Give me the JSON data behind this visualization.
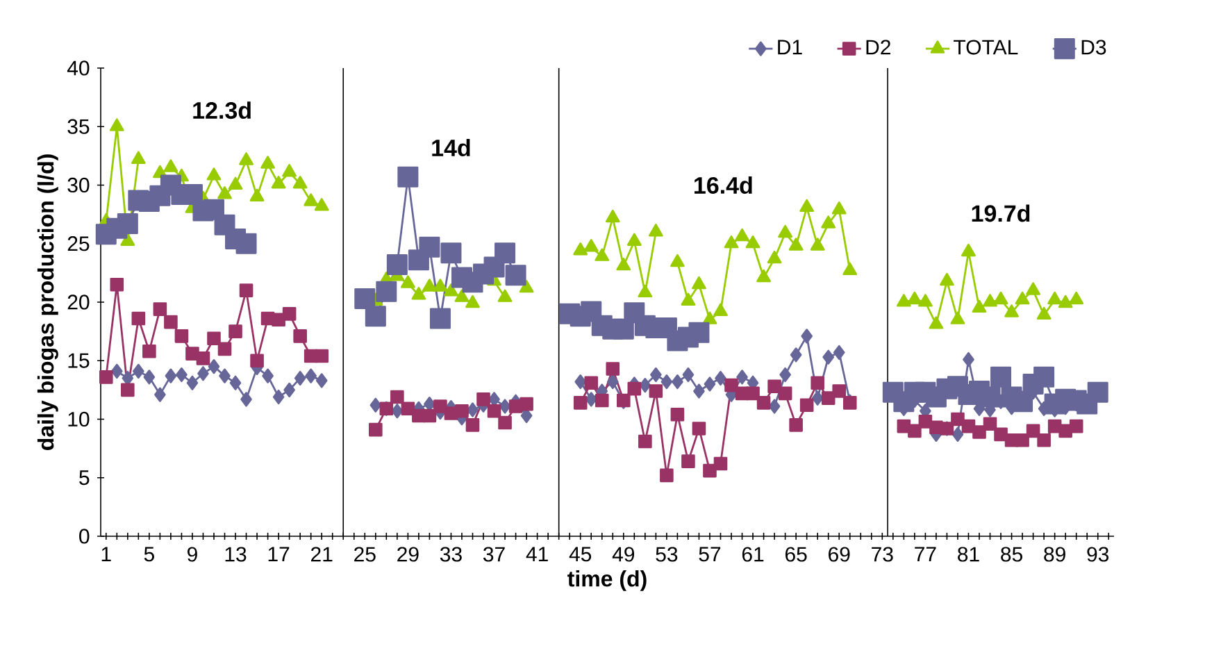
{
  "chart_data": {
    "type": "line",
    "xlabel": "time (d)",
    "ylabel": "daily biogas production (l/d)",
    "xlim": [
      0.5,
      94.5
    ],
    "ylim": [
      0,
      40
    ],
    "xticks": [
      1,
      {
        "value": 2,
        "label": null
      },
      {
        "value": 3,
        "label": null
      },
      {
        "value": 4,
        "label": null
      },
      5,
      {
        "value": 6,
        "label": null
      },
      {
        "value": 7,
        "label": null
      },
      {
        "value": 8,
        "label": null
      },
      9,
      {
        "value": 10,
        "label": null
      },
      {
        "value": 11,
        "label": null
      },
      {
        "value": 12,
        "label": null
      },
      13,
      {
        "value": 14,
        "label": null
      },
      {
        "value": 15,
        "label": null
      },
      {
        "value": 16,
        "label": null
      },
      17,
      {
        "value": 18,
        "label": null
      },
      {
        "value": 19,
        "label": null
      },
      {
        "value": 20,
        "label": null
      },
      21,
      {
        "value": 22,
        "label": null
      },
      {
        "value": 23,
        "label": null
      },
      {
        "value": 24,
        "label": null
      },
      25,
      {
        "value": 26,
        "label": null
      },
      {
        "value": 27,
        "label": null
      },
      {
        "value": 28,
        "label": null
      },
      29,
      {
        "value": 30,
        "label": null
      },
      {
        "value": 31,
        "label": null
      },
      {
        "value": 32,
        "label": null
      },
      33,
      {
        "value": 34,
        "label": null
      },
      {
        "value": 35,
        "label": null
      },
      {
        "value": 36,
        "label": null
      },
      37,
      {
        "value": 38,
        "label": null
      },
      {
        "value": 39,
        "label": null
      },
      {
        "value": 40,
        "label": null
      },
      41,
      {
        "value": 42,
        "label": null
      },
      {
        "value": 43,
        "label": null
      },
      {
        "value": 44,
        "label": null
      },
      45,
      {
        "value": 46,
        "label": null
      },
      {
        "value": 47,
        "label": null
      },
      {
        "value": 48,
        "label": null
      },
      49,
      {
        "value": 50,
        "label": null
      },
      {
        "value": 51,
        "label": null
      },
      {
        "value": 52,
        "label": null
      },
      53,
      {
        "value": 54,
        "label": null
      },
      {
        "value": 55,
        "label": null
      },
      {
        "value": 56,
        "label": null
      },
      57,
      {
        "value": 58,
        "label": null
      },
      {
        "value": 59,
        "label": null
      },
      {
        "value": 60,
        "label": null
      },
      61,
      {
        "value": 62,
        "label": null
      },
      {
        "value": 63,
        "label": null
      },
      {
        "value": 64,
        "label": null
      },
      65,
      {
        "value": 66,
        "label": null
      },
      {
        "value": 67,
        "label": null
      },
      {
        "value": 68,
        "label": null
      },
      69,
      {
        "value": 70,
        "label": null
      },
      {
        "value": 71,
        "label": null
      },
      {
        "value": 72,
        "label": null
      },
      73,
      {
        "value": 74,
        "label": null
      },
      {
        "value": 75,
        "label": null
      },
      {
        "value": 76,
        "label": null
      },
      77,
      {
        "value": 78,
        "label": null
      },
      {
        "value": 79,
        "label": null
      },
      {
        "value": 80,
        "label": null
      },
      81,
      {
        "value": 82,
        "label": null
      },
      {
        "value": 83,
        "label": null
      },
      {
        "value": 84,
        "label": null
      },
      85,
      {
        "value": 86,
        "label": null
      },
      {
        "value": 87,
        "label": null
      },
      {
        "value": 88,
        "label": null
      },
      89,
      {
        "value": 90,
        "label": null
      },
      {
        "value": 91,
        "label": null
      },
      {
        "value": 92,
        "label": null
      },
      93,
      {
        "value": 94,
        "label": null
      }
    ],
    "yticks": [
      0,
      5,
      10,
      15,
      20,
      25,
      30,
      35,
      40
    ],
    "grid": false,
    "legend": "top right",
    "line_style": "solid",
    "series": [
      {
        "name": "D1",
        "color": "#666699",
        "marker": "diamond",
        "x": [
          2,
          3,
          4,
          5,
          6,
          7,
          8,
          9,
          10,
          11,
          12,
          13,
          14,
          15,
          16,
          17,
          18,
          19,
          20,
          21,
          23,
          26,
          27,
          28,
          29,
          30,
          31,
          32,
          33,
          34,
          35,
          36,
          37,
          38,
          39,
          40,
          43,
          45,
          46,
          47,
          48,
          49,
          50,
          51,
          52,
          53,
          54,
          55,
          56,
          57,
          58,
          59,
          60,
          61,
          62,
          63,
          64,
          65,
          66,
          67,
          68,
          69,
          70,
          73,
          75,
          76,
          77,
          78,
          79,
          80,
          81,
          82,
          83,
          84,
          85,
          86,
          87,
          88,
          89,
          90,
          91
        ],
        "values": [
          14.1,
          13.5,
          14.1,
          13.6,
          12.1,
          13.7,
          13.8,
          13.1,
          13.9,
          14.5,
          13.7,
          13.1,
          11.7,
          14.4,
          13.7,
          11.9,
          12.5,
          13.5,
          13.7,
          13.3,
          null,
          11.2,
          10.9,
          10.7,
          null,
          10.9,
          11.3,
          10.6,
          11.0,
          10.1,
          10.8,
          11.2,
          11.7,
          11.1,
          11.5,
          10.3,
          null,
          13.2,
          11.7,
          12.4,
          13.2,
          11.5,
          13.0,
          12.9,
          13.8,
          13.2,
          13.2,
          13.8,
          12.4,
          13.0,
          13.5,
          12.1,
          13.6,
          13.1,
          null,
          11.1,
          13.8,
          15.5,
          17.1,
          11.8,
          15.3,
          15.7,
          11.5,
          null,
          10.9,
          11.6,
          10.7,
          8.7,
          9.2,
          8.7,
          15.1,
          10.9,
          10.8,
          11.5,
          11.0,
          11.8,
          12.3,
          10.9,
          10.8,
          11.0,
          11.3
        ]
      },
      {
        "name": "D2",
        "color": "#993366",
        "marker": "square",
        "x": [
          1,
          2,
          3,
          4,
          5,
          6,
          7,
          8,
          9,
          10,
          11,
          12,
          13,
          14,
          15,
          16,
          17,
          18,
          19,
          20,
          21,
          23,
          26,
          27,
          28,
          29,
          30,
          31,
          32,
          33,
          34,
          35,
          36,
          37,
          38,
          39,
          40,
          43,
          45,
          46,
          47,
          48,
          49,
          50,
          51,
          52,
          53,
          54,
          55,
          56,
          57,
          58,
          59,
          60,
          61,
          62,
          63,
          64,
          65,
          66,
          67,
          68,
          69,
          70,
          73,
          75,
          76,
          77,
          78,
          79,
          80,
          81,
          82,
          83,
          84,
          85,
          86,
          87,
          88,
          89,
          90,
          91
        ],
        "values": [
          13.6,
          21.5,
          12.5,
          18.6,
          15.8,
          19.4,
          18.3,
          17.1,
          15.6,
          15.2,
          16.9,
          16.0,
          17.5,
          21.0,
          15.0,
          18.6,
          18.5,
          19.0,
          17.1,
          15.4,
          15.4,
          null,
          9.1,
          10.9,
          11.9,
          10.9,
          10.3,
          10.3,
          11.1,
          10.5,
          10.7,
          9.5,
          11.7,
          10.7,
          9.7,
          11.1,
          11.3,
          null,
          11.4,
          13.1,
          11.6,
          14.3,
          11.6,
          12.6,
          8.1,
          12.4,
          5.2,
          10.4,
          6.4,
          9.2,
          5.6,
          6.2,
          12.9,
          12.2,
          12.2,
          11.4,
          12.8,
          12.2,
          9.5,
          11.2,
          13.1,
          11.8,
          12.4,
          11.4,
          null,
          9.4,
          9.0,
          9.8,
          9.3,
          9.2,
          10.0,
          9.4,
          8.9,
          9.6,
          8.7,
          8.2,
          8.2,
          9.0,
          8.2,
          9.4,
          9.0,
          9.4
        ]
      },
      {
        "name": "TOTAL",
        "color": "#99cc00",
        "marker": "triangle",
        "x": [
          1,
          2,
          3,
          4,
          5,
          6,
          7,
          8,
          9,
          10,
          11,
          12,
          13,
          14,
          15,
          16,
          17,
          18,
          19,
          20,
          21,
          23,
          26,
          27,
          28,
          29,
          30,
          31,
          32,
          33,
          34,
          35,
          36,
          37,
          38,
          39,
          40,
          43,
          45,
          46,
          47,
          48,
          49,
          50,
          51,
          52,
          53,
          54,
          55,
          56,
          57,
          58,
          59,
          60,
          61,
          62,
          63,
          64,
          65,
          66,
          67,
          68,
          69,
          70,
          73,
          75,
          76,
          77,
          78,
          79,
          80,
          81,
          82,
          83,
          84,
          85,
          86,
          87,
          88,
          89,
          90,
          91
        ],
        "values": [
          26.9,
          35.0,
          25.2,
          32.2,
          null,
          31.0,
          31.5,
          30.7,
          28.0,
          28.8,
          30.8,
          29.2,
          30.0,
          32.1,
          29.0,
          31.8,
          30.1,
          31.1,
          30.1,
          28.6,
          28.2,
          null,
          20.1,
          21.9,
          22.2,
          21.6,
          20.6,
          21.3,
          21.3,
          20.9,
          20.4,
          19.9,
          null,
          21.8,
          20.4,
          null,
          21.2,
          null,
          24.4,
          24.7,
          23.9,
          27.2,
          23.1,
          25.2,
          20.8,
          26.0,
          null,
          23.4,
          20.1,
          21.5,
          18.5,
          19.2,
          25.0,
          25.6,
          25.0,
          22.1,
          23.7,
          25.9,
          24.8,
          28.1,
          24.8,
          26.7,
          27.9,
          22.7,
          null,
          20.0,
          20.2,
          20.0,
          18.1,
          21.8,
          18.5,
          24.3,
          19.5,
          20.0,
          20.2,
          19.1,
          20.2,
          21.0,
          18.9,
          20.2,
          19.9,
          20.2
        ]
      },
      {
        "name": "D3",
        "color": "#666699",
        "marker": "square",
        "x": [
          1,
          2,
          3,
          4,
          5,
          6,
          7,
          8,
          9,
          10,
          11,
          12,
          13,
          14,
          20,
          25,
          26,
          27,
          28,
          29,
          30,
          31,
          32,
          33,
          34,
          35,
          36,
          37,
          38,
          39,
          42,
          44,
          45,
          46,
          47,
          48,
          49,
          50,
          51,
          52,
          53,
          54,
          55,
          56,
          65,
          74,
          75,
          76,
          77,
          78,
          79,
          80,
          81,
          82,
          83,
          84,
          85,
          86,
          87,
          88,
          89,
          90,
          91,
          92,
          93
        ],
        "values": [
          25.8,
          26.3,
          26.7,
          28.7,
          28.6,
          29.1,
          30.0,
          29.2,
          29.2,
          27.8,
          27.9,
          26.6,
          25.4,
          25.0,
          null,
          20.3,
          18.8,
          20.9,
          23.2,
          30.7,
          23.6,
          24.7,
          18.6,
          24.2,
          22.1,
          21.7,
          22.4,
          23.0,
          24.2,
          22.3,
          null,
          19.0,
          18.8,
          19.2,
          18.0,
          17.7,
          17.7,
          19.1,
          18.0,
          17.8,
          17.8,
          16.7,
          17.0,
          17.4,
          null,
          12.3,
          11.5,
          12.3,
          12.3,
          11.9,
          12.6,
          12.8,
          12.1,
          12.4,
          11.9,
          13.6,
          11.9,
          11.5,
          13.0,
          13.6,
          11.3,
          11.7,
          11.6,
          11.3,
          12.3
        ]
      }
    ],
    "ref_lines": [
      {
        "axis": "x",
        "value": 23,
        "color": "#000000"
      },
      {
        "axis": "x",
        "value": 43,
        "color": "#000000"
      },
      {
        "axis": "x",
        "value": 73.5,
        "color": "#000000"
      }
    ],
    "annotations": [
      "12.3d",
      "14d",
      "16.4d",
      "19.7d"
    ]
  }
}
